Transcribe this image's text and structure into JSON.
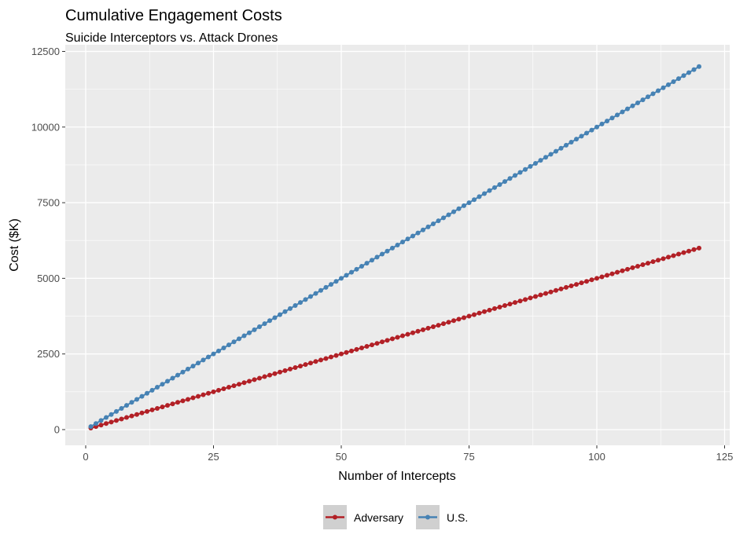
{
  "chart_data": {
    "type": "line",
    "title": "Cumulative Engagement Costs",
    "subtitle": "Suicide Interceptors vs. Attack Drones",
    "xlabel": "Number of Intercepts",
    "ylabel": "Cost ($K)",
    "xlim": [
      -4,
      126
    ],
    "ylim": [
      -520,
      12720
    ],
    "xticks": [
      0,
      25,
      50,
      75,
      100,
      125
    ],
    "xtick_labels": [
      "0",
      "25",
      "50",
      "75",
      "100",
      "125"
    ],
    "yticks": [
      0,
      2500,
      5000,
      7500,
      10000,
      12500
    ],
    "ytick_labels": [
      "0",
      "2500",
      "5000",
      "7500",
      "10000",
      "12500"
    ],
    "grid": true,
    "legend_position": "bottom",
    "x": [
      1,
      2,
      3,
      4,
      5,
      6,
      7,
      8,
      9,
      10,
      11,
      12,
      13,
      14,
      15,
      16,
      17,
      18,
      19,
      20,
      21,
      22,
      23,
      24,
      25,
      26,
      27,
      28,
      29,
      30,
      31,
      32,
      33,
      34,
      35,
      36,
      37,
      38,
      39,
      40,
      41,
      42,
      43,
      44,
      45,
      46,
      47,
      48,
      49,
      50,
      51,
      52,
      53,
      54,
      55,
      56,
      57,
      58,
      59,
      60,
      61,
      62,
      63,
      64,
      65,
      66,
      67,
      68,
      69,
      70,
      71,
      72,
      73,
      74,
      75,
      76,
      77,
      78,
      79,
      80,
      81,
      82,
      83,
      84,
      85,
      86,
      87,
      88,
      89,
      90,
      91,
      92,
      93,
      94,
      95,
      96,
      97,
      98,
      99,
      100,
      101,
      102,
      103,
      104,
      105,
      106,
      107,
      108,
      109,
      110,
      111,
      112,
      113,
      114,
      115,
      116,
      117,
      118,
      119,
      120
    ],
    "series": [
      {
        "name": "Adversary",
        "color": "#B22026",
        "per_intercept": 50,
        "values": [
          50,
          100,
          150,
          200,
          250,
          300,
          350,
          400,
          450,
          500,
          550,
          600,
          650,
          700,
          750,
          800,
          850,
          900,
          950,
          1000,
          1050,
          1100,
          1150,
          1200,
          1250,
          1300,
          1350,
          1400,
          1450,
          1500,
          1550,
          1600,
          1650,
          1700,
          1750,
          1800,
          1850,
          1900,
          1950,
          2000,
          2050,
          2100,
          2150,
          2200,
          2250,
          2300,
          2350,
          2400,
          2450,
          2500,
          2550,
          2600,
          2650,
          2700,
          2750,
          2800,
          2850,
          2900,
          2950,
          3000,
          3050,
          3100,
          3150,
          3200,
          3250,
          3300,
          3350,
          3400,
          3450,
          3500,
          3550,
          3600,
          3650,
          3700,
          3750,
          3800,
          3850,
          3900,
          3950,
          4000,
          4050,
          4100,
          4150,
          4200,
          4250,
          4300,
          4350,
          4400,
          4450,
          4500,
          4550,
          4600,
          4650,
          4700,
          4750,
          4800,
          4850,
          4900,
          4950,
          5000,
          5050,
          5100,
          5150,
          5200,
          5250,
          5300,
          5350,
          5400,
          5450,
          5500,
          5550,
          5600,
          5650,
          5700,
          5750,
          5800,
          5850,
          5900,
          5950,
          6000
        ]
      },
      {
        "name": "U.S.",
        "color": "#4682B4",
        "per_intercept": 100,
        "values": [
          100,
          200,
          300,
          400,
          500,
          600,
          700,
          800,
          900,
          1000,
          1100,
          1200,
          1300,
          1400,
          1500,
          1600,
          1700,
          1800,
          1900,
          2000,
          2100,
          2200,
          2300,
          2400,
          2500,
          2600,
          2700,
          2800,
          2900,
          3000,
          3100,
          3200,
          3300,
          3400,
          3500,
          3600,
          3700,
          3800,
          3900,
          4000,
          4100,
          4200,
          4300,
          4400,
          4500,
          4600,
          4700,
          4800,
          4900,
          5000,
          5100,
          5200,
          5300,
          5400,
          5500,
          5600,
          5700,
          5800,
          5900,
          6000,
          6100,
          6200,
          6300,
          6400,
          6500,
          6600,
          6700,
          6800,
          6900,
          7000,
          7100,
          7200,
          7300,
          7400,
          7500,
          7600,
          7700,
          7800,
          7900,
          8000,
          8100,
          8200,
          8300,
          8400,
          8500,
          8600,
          8700,
          8800,
          8900,
          9000,
          9100,
          9200,
          9300,
          9400,
          9500,
          9600,
          9700,
          9800,
          9900,
          10000,
          10100,
          10200,
          10300,
          10400,
          10500,
          10600,
          10700,
          10800,
          10900,
          11000,
          11100,
          11200,
          11300,
          11400,
          11500,
          11600,
          11700,
          11800,
          11900,
          12000
        ]
      }
    ]
  }
}
